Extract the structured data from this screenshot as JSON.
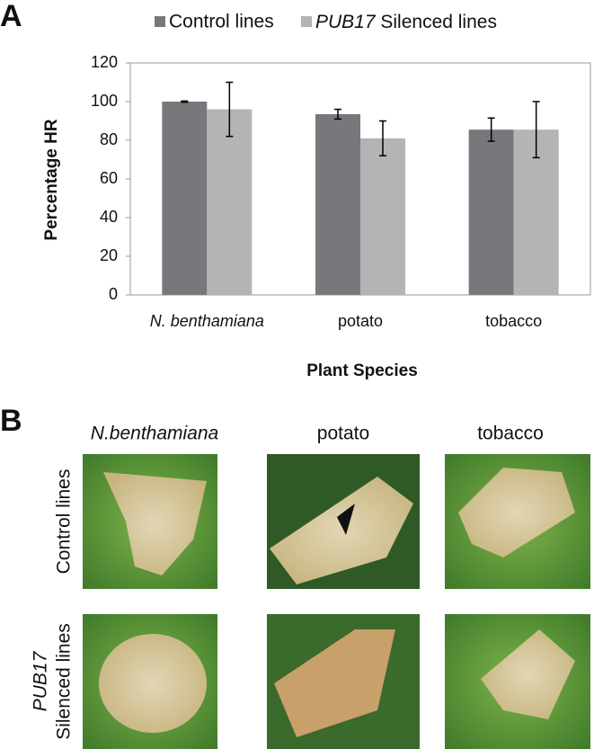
{
  "chart_data": {
    "type": "bar",
    "panel_label": "A",
    "categories": [
      "N. benthamiana",
      "potato",
      "tobacco"
    ],
    "series": [
      {
        "name": "Control lines",
        "color": "#77787b",
        "values": [
          100,
          93.5,
          85.5
        ],
        "errors": [
          0.3,
          2.5,
          6
        ]
      },
      {
        "name": "PUB17 Silenced lines",
        "color": "#b3b4b6",
        "values": [
          96,
          81,
          85.5
        ],
        "errors": [
          14,
          9,
          14.5
        ]
      }
    ],
    "ylim": [
      0,
      120
    ],
    "yticks": [
      0,
      20,
      40,
      60,
      80,
      100,
      120
    ],
    "y_label": "Percentage HR",
    "x_label": "Plant Species",
    "legend": "top"
  },
  "panel_b": {
    "panel_label": "B",
    "columns": [
      "N.benthamiana",
      "potato",
      "tobacco"
    ],
    "rows": [
      [
        "Control lines"
      ],
      [
        "PUB17",
        "Silenced lines"
      ]
    ]
  }
}
